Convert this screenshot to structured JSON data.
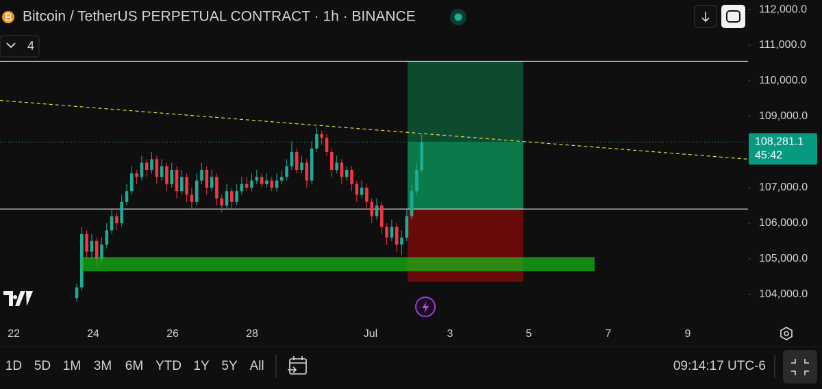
{
  "header": {
    "title": "Bitcoin / TetherUS PERPETUAL CONTRACT · 1h · BINANCE",
    "indicator_count": 4
  },
  "chart_data": {
    "type": "candlestick",
    "candles": [
      [
        103900,
        104300,
        103800,
        104200
      ],
      [
        104200,
        105900,
        104100,
        105700
      ],
      [
        105700,
        105800,
        105000,
        105200
      ],
      [
        105200,
        105700,
        105000,
        105500
      ],
      [
        105500,
        105600,
        104800,
        105000
      ],
      [
        105000,
        105600,
        104900,
        105400
      ],
      [
        105400,
        106000,
        105300,
        105800
      ],
      [
        105800,
        106400,
        105700,
        106200
      ],
      [
        106200,
        106300,
        105800,
        106000
      ],
      [
        106000,
        106800,
        105900,
        106600
      ],
      [
        106600,
        107100,
        106500,
        106900
      ],
      [
        106900,
        107600,
        106800,
        107400
      ],
      [
        107400,
        107500,
        107100,
        107300
      ],
      [
        107300,
        107900,
        107200,
        107700
      ],
      [
        107700,
        107800,
        107300,
        107500
      ],
      [
        107500,
        108000,
        107400,
        107800
      ],
      [
        107800,
        107900,
        107100,
        107300
      ],
      [
        107300,
        107800,
        107200,
        107600
      ],
      [
        107600,
        107700,
        106900,
        107100
      ],
      [
        107100,
        107700,
        107000,
        107500
      ],
      [
        107500,
        107600,
        106700,
        106900
      ],
      [
        106900,
        107500,
        106800,
        107300
      ],
      [
        107300,
        107400,
        106600,
        106800
      ],
      [
        106800,
        107000,
        106400,
        106600
      ],
      [
        106600,
        107400,
        106500,
        107200
      ],
      [
        107200,
        107700,
        107100,
        107500
      ],
      [
        107500,
        107600,
        106800,
        107000
      ],
      [
        107000,
        107500,
        106900,
        107300
      ],
      [
        107300,
        107400,
        106500,
        106700
      ],
      [
        106700,
        106800,
        106300,
        106500
      ],
      [
        106500,
        107100,
        106400,
        106900
      ],
      [
        106900,
        107000,
        106400,
        106600
      ],
      [
        106600,
        107100,
        106500,
        106900
      ],
      [
        106900,
        107300,
        106800,
        107100
      ],
      [
        107100,
        107300,
        106900,
        107000
      ],
      [
        107000,
        107400,
        106900,
        107200
      ],
      [
        107200,
        107500,
        107100,
        107300
      ],
      [
        107300,
        107400,
        107000,
        107100
      ],
      [
        107100,
        107400,
        107000,
        107200
      ],
      [
        107200,
        107300,
        106900,
        107000
      ],
      [
        107000,
        107400,
        106900,
        107200
      ],
      [
        107200,
        107500,
        107100,
        107300
      ],
      [
        107300,
        107800,
        107200,
        107600
      ],
      [
        107600,
        108300,
        107500,
        108000
      ],
      [
        108000,
        108100,
        107400,
        107500
      ],
      [
        107500,
        107900,
        107400,
        107700
      ],
      [
        107700,
        107800,
        107000,
        107200
      ],
      [
        107200,
        108300,
        107100,
        108100
      ],
      [
        108100,
        108700,
        108000,
        108500
      ],
      [
        108500,
        108600,
        108200,
        108400
      ],
      [
        108400,
        108500,
        107900,
        108000
      ],
      [
        108000,
        108100,
        107300,
        107500
      ],
      [
        107500,
        107900,
        107400,
        107700
      ],
      [
        107700,
        107800,
        107100,
        107300
      ],
      [
        107300,
        107600,
        107200,
        107500
      ],
      [
        107500,
        107600,
        106900,
        107100
      ],
      [
        107100,
        107200,
        106600,
        106800
      ],
      [
        106800,
        107200,
        106700,
        107000
      ],
      [
        107000,
        107100,
        106400,
        106600
      ],
      [
        106600,
        106700,
        106000,
        106200
      ],
      [
        106200,
        106700,
        106100,
        106500
      ],
      [
        106500,
        106600,
        105700,
        105900
      ],
      [
        105900,
        106000,
        105400,
        105600
      ],
      [
        105600,
        106100,
        105500,
        105900
      ],
      [
        105900,
        106000,
        105200,
        105400
      ],
      [
        105400,
        105800,
        105100,
        105600
      ],
      [
        105600,
        106400,
        105500,
        106200
      ],
      [
        106200,
        107100,
        106100,
        106900
      ],
      [
        106900,
        107700,
        106800,
        107500
      ],
      [
        107500,
        108500,
        107400,
        108281.1
      ]
    ],
    "colors": {
      "up": "#22ab94",
      "down": "#f23645"
    },
    "ylim": [
      103230,
      112270
    ],
    "yticks": [
      {
        "value": 112000,
        "label": "112,000.0"
      },
      {
        "value": 111000,
        "label": "111,000.0"
      },
      {
        "value": 110000,
        "label": "110,000.0"
      },
      {
        "value": 109000,
        "label": "109,000.0"
      },
      {
        "value": 107000,
        "label": "107,000.0"
      },
      {
        "value": 106000,
        "label": "106,000.0"
      },
      {
        "value": 105000,
        "label": "105,000.0"
      },
      {
        "value": 104000,
        "label": "104,000.0"
      }
    ],
    "xticks": [
      "22",
      "24",
      "26",
      "28",
      "Jul",
      "3",
      "5",
      "7",
      "9"
    ],
    "last_price": {
      "value": 108281.1,
      "label": "108,281.1"
    },
    "countdown": "45:42",
    "levels": [
      110550,
      106400
    ],
    "trendline": [
      109450,
      107800
    ],
    "zone": [
      104650,
      105050
    ],
    "position": {
      "target": 110550,
      "entry": 106400,
      "stop": 104350
    }
  },
  "toolbar": {
    "ranges": [
      "1D",
      "5D",
      "1M",
      "3M",
      "6M",
      "YTD",
      "1Y",
      "5Y",
      "All"
    ],
    "clock": "09:14:17 UTC-6"
  }
}
